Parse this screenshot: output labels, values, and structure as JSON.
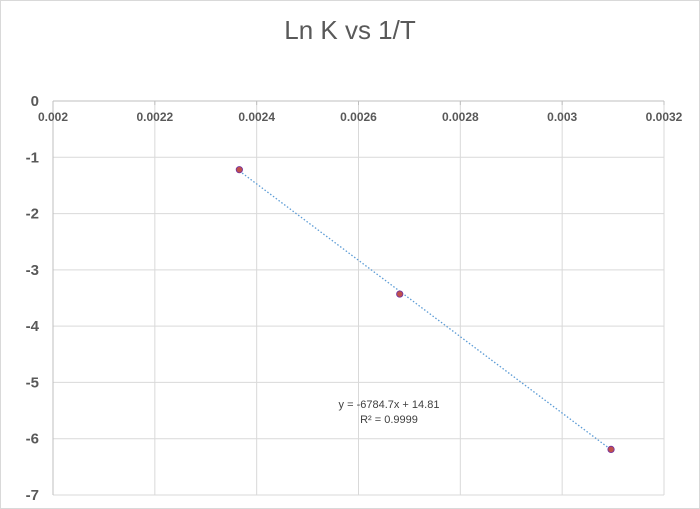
{
  "chart_data": {
    "type": "scatter",
    "title": "Ln K vs 1/T",
    "xlabel": "",
    "ylabel": "",
    "xlim": [
      0.002,
      0.0032
    ],
    "ylim": [
      -7,
      0
    ],
    "x_ticks": [
      "0.002",
      "0.0022",
      "0.0024",
      "0.0026",
      "0.0028",
      "0.003",
      "0.0032"
    ],
    "y_ticks": [
      "0",
      "-1",
      "-2",
      "-3",
      "-4",
      "-5",
      "-6",
      "-7"
    ],
    "grid": true,
    "points": [
      {
        "x": 0.002366,
        "y": -1.22
      },
      {
        "x": 0.002681,
        "y": -3.43
      },
      {
        "x": 0.003096,
        "y": -6.19
      }
    ],
    "trendline": {
      "type": "linear",
      "slope": -6784.7,
      "intercept": 14.81,
      "equation": "y = -6784.7x + 14.81",
      "r_squared": "R² = 0.9999"
    },
    "colors": {
      "marker_fill": "#c0504d",
      "marker_stroke": "#7030a0",
      "trendline": "#5b9bd5",
      "gridline": "#d9d9d9",
      "axis": "#bfbfbf",
      "text": "#595959"
    }
  }
}
